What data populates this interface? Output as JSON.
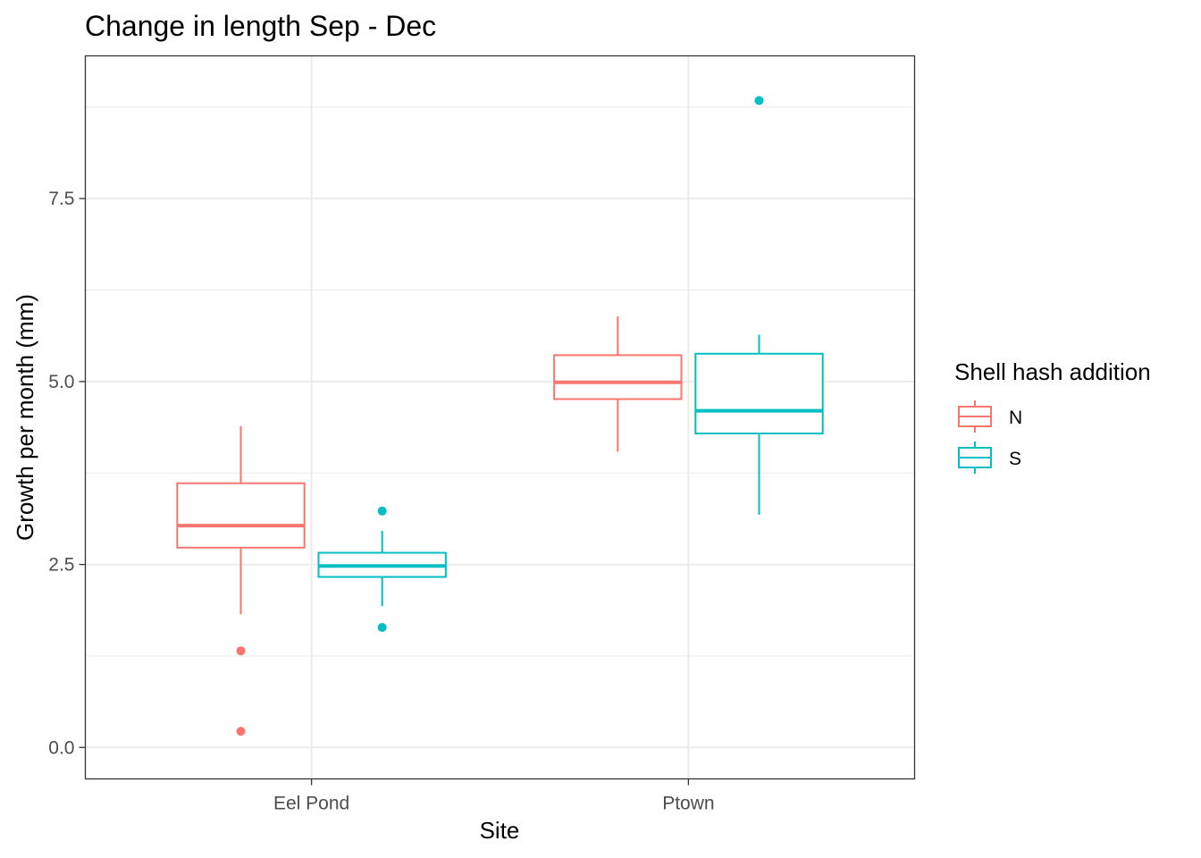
{
  "chart_data": {
    "type": "boxplot",
    "title": "Change in length Sep - Dec",
    "xlabel": "Site",
    "ylabel": "Growth per month (mm)",
    "categories": [
      "Eel Pond",
      "Ptown"
    ],
    "y_ticks": [
      0.0,
      2.5,
      5.0,
      7.5
    ],
    "y_tick_labels": [
      "0.0",
      "2.5",
      "5.0",
      "7.5"
    ],
    "ylim": [
      -0.43,
      9.45
    ],
    "grid": true,
    "legend": {
      "title": "Shell hash addition",
      "position": "right",
      "entries": [
        "N",
        "S"
      ]
    },
    "series": [
      {
        "name": "N",
        "color": "#F8766D",
        "boxes": [
          {
            "category": "Eel Pond",
            "whisker_low": 1.82,
            "q1": 2.73,
            "median": 3.03,
            "q3": 3.61,
            "whisker_high": 4.39,
            "outliers": [
              1.32,
              0.22
            ]
          },
          {
            "category": "Ptown",
            "whisker_low": 4.04,
            "q1": 4.76,
            "median": 4.99,
            "q3": 5.36,
            "whisker_high": 5.89,
            "outliers": []
          }
        ]
      },
      {
        "name": "S",
        "color": "#00BFC4",
        "boxes": [
          {
            "category": "Eel Pond",
            "whisker_low": 1.93,
            "q1": 2.33,
            "median": 2.48,
            "q3": 2.66,
            "whisker_high": 2.96,
            "outliers": [
              3.23,
              1.64
            ]
          },
          {
            "category": "Ptown",
            "whisker_low": 3.18,
            "q1": 4.29,
            "median": 4.6,
            "q3": 5.38,
            "whisker_high": 5.64,
            "outliers": [
              8.84
            ]
          }
        ]
      }
    ]
  }
}
